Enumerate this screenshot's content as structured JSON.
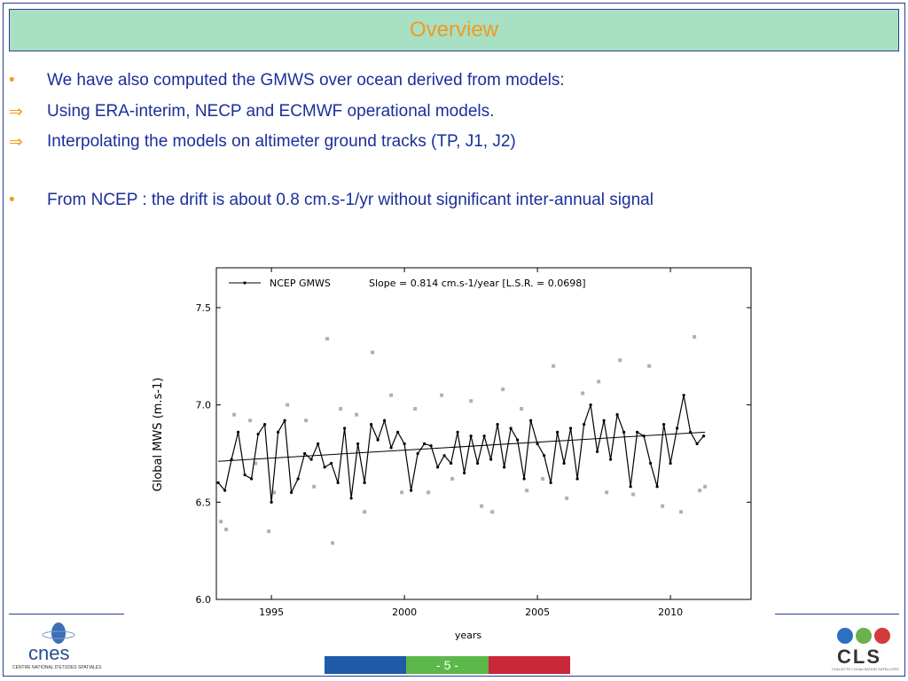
{
  "header": {
    "title": "Overview"
  },
  "bullets": [
    {
      "marker": "•",
      "text": "We have also computed the GMWS over ocean derived from models:"
    },
    {
      "marker": "⇒",
      "text": "Using ERA-interim, NECP and ECMWF operational models."
    },
    {
      "marker": "⇒",
      "text": "Interpolating the models on altimeter ground tracks (TP, J1, J2)"
    },
    {
      "marker": "•",
      "text": "From NCEP : the drift is about 0.8 cm.s-1/yr without significant inter-annual signal"
    }
  ],
  "chart_data": {
    "type": "line",
    "x_label": "years",
    "y_label": "Global MWS (m.s-1)",
    "annotation": "Slope = 0.814 cm.s-1/year [L.S.R. = 0.0698]",
    "xlim": [
      1992.93,
      2013.03
    ],
    "ylim": [
      6.0,
      7.705
    ],
    "xticks": [
      1995,
      2000,
      2005,
      2010
    ],
    "yticks": [
      {
        "value": 6.0,
        "label": "6.0"
      },
      {
        "value": 6.5,
        "label": "6.5"
      },
      {
        "value": 7.0,
        "label": "7.0"
      },
      {
        "value": 7.5,
        "label": "7.5"
      }
    ],
    "legend": "upper left",
    "series": [
      {
        "name": "NCEP GMWS",
        "color": "#000000",
        "type": "line",
        "x": [
          1993.0,
          1993.25,
          1993.5,
          1993.75,
          1994.0,
          1994.25,
          1994.5,
          1994.75,
          1995.0,
          1995.25,
          1995.5,
          1995.75,
          1996.0,
          1996.25,
          1996.5,
          1996.75,
          1997.0,
          1997.25,
          1997.5,
          1997.75,
          1998.0,
          1998.25,
          1998.5,
          1998.75,
          1999.0,
          1999.25,
          1999.5,
          1999.75,
          2000.0,
          2000.25,
          2000.5,
          2000.75,
          2001.0,
          2001.25,
          2001.5,
          2001.75,
          2002.0,
          2002.25,
          2002.5,
          2002.75,
          2003.0,
          2003.25,
          2003.5,
          2003.75,
          2004.0,
          2004.25,
          2004.5,
          2004.75,
          2005.0,
          2005.25,
          2005.5,
          2005.75,
          2006.0,
          2006.25,
          2006.5,
          2006.75,
          2007.0,
          2007.25,
          2007.5,
          2007.75,
          2008.0,
          2008.25,
          2008.5,
          2008.75,
          2009.0,
          2009.25,
          2009.5,
          2009.75,
          2010.0,
          2010.25,
          2010.5,
          2010.75,
          2011.0,
          2011.25
        ],
        "values": [
          6.6,
          6.56,
          6.72,
          6.86,
          6.64,
          6.62,
          6.85,
          6.9,
          6.5,
          6.86,
          6.92,
          6.55,
          6.62,
          6.75,
          6.72,
          6.8,
          6.68,
          6.7,
          6.6,
          6.88,
          6.52,
          6.8,
          6.6,
          6.9,
          6.82,
          6.92,
          6.78,
          6.86,
          6.8,
          6.56,
          6.75,
          6.8,
          6.79,
          6.68,
          6.74,
          6.7,
          6.86,
          6.65,
          6.84,
          6.7,
          6.84,
          6.72,
          6.9,
          6.68,
          6.88,
          6.82,
          6.62,
          6.92,
          6.8,
          6.74,
          6.6,
          6.86,
          6.7,
          6.88,
          6.62,
          6.9,
          7.0,
          6.76,
          6.92,
          6.72,
          6.95,
          6.86,
          6.58,
          6.86,
          6.84,
          6.7,
          6.58,
          6.9,
          6.7,
          6.88,
          7.05,
          6.86,
          6.8,
          6.84
        ]
      },
      {
        "color": "#000000",
        "type": "trend",
        "x": [
          1993.0,
          2011.3
        ],
        "values": [
          6.71,
          6.86
        ]
      },
      {
        "color": "#b0b0b0",
        "type": "scatter",
        "x": [
          1993.1,
          1993.3,
          1993.6,
          1994.2,
          1994.4,
          1994.9,
          1995.1,
          1995.6,
          1996.3,
          1996.6,
          1997.1,
          1997.3,
          1997.6,
          1998.2,
          1998.5,
          1998.8,
          1999.5,
          1999.9,
          2000.4,
          2000.9,
          2001.4,
          2001.8,
          2002.5,
          2002.9,
          2003.3,
          2003.7,
          2004.4,
          2004.6,
          2005.2,
          2005.6,
          2006.1,
          2006.7,
          2007.3,
          2007.6,
          2008.1,
          2008.6,
          2009.2,
          2009.7,
          2010.4,
          2010.9,
          2011.1,
          2011.3
        ],
        "values": [
          6.4,
          6.36,
          6.95,
          6.92,
          6.7,
          6.35,
          6.55,
          7.0,
          6.92,
          6.58,
          7.34,
          6.29,
          6.98,
          6.95,
          6.45,
          7.27,
          7.05,
          6.55,
          6.98,
          6.55,
          7.05,
          6.62,
          7.02,
          6.48,
          6.45,
          7.08,
          6.98,
          6.56,
          6.62,
          7.2,
          6.52,
          7.06,
          7.12,
          6.55,
          7.23,
          6.54,
          7.2,
          6.48,
          6.45,
          7.35,
          6.56,
          6.58
        ]
      }
    ]
  },
  "footer": {
    "page": "- 5 -",
    "left_logo": "cnes",
    "left_caption": "CENTRE NATIONAL D'ETUDES SPATIALES",
    "right_logo": "CLS",
    "right_caption": "COLLECTE LOCALISATION SATELLITES"
  }
}
